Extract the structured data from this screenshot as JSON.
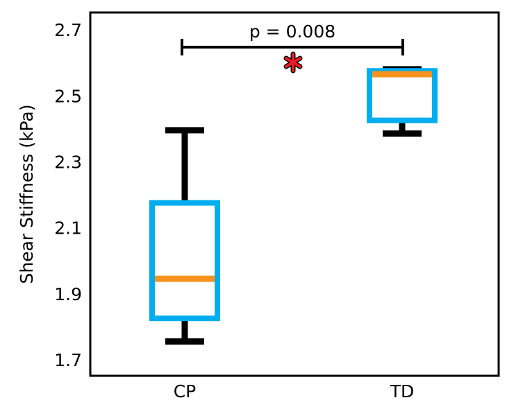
{
  "chart_data": {
    "type": "box",
    "ylabel": "Shear Stiffness (kPa)",
    "categories": [
      "CP",
      "TD"
    ],
    "boxes": [
      {
        "whislo": 1.76,
        "q1": 1.83,
        "med": 1.95,
        "q3": 2.18,
        "whishi": 2.4
      },
      {
        "whislo": 2.39,
        "q1": 2.43,
        "med": 2.57,
        "q3": 2.58,
        "whishi": 2.585
      }
    ],
    "box_color": "#00aeef",
    "median_color": "#f7941d",
    "whisker_color": "#000000",
    "ylim": [
      1.656,
      2.757
    ],
    "yticks": [
      1.7,
      1.9,
      2.1,
      2.3,
      2.5,
      2.7
    ],
    "annotation": {
      "text": "p = 0.008",
      "y": 2.652
    }
  }
}
